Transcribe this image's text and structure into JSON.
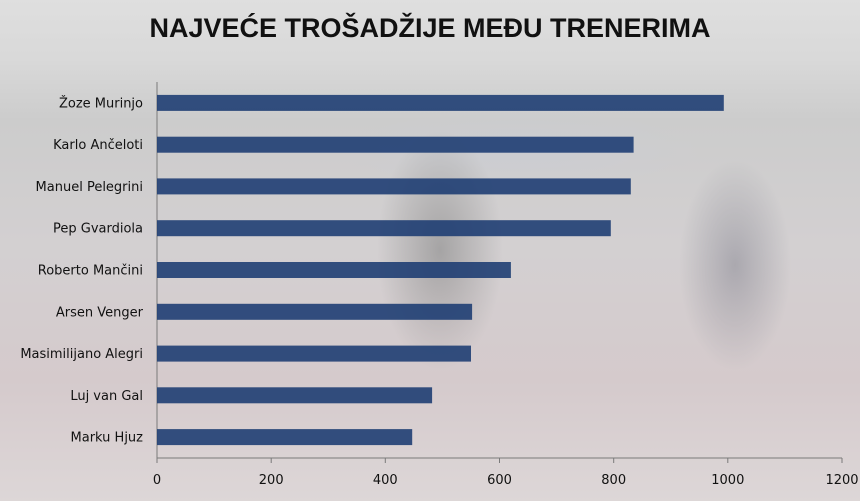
{
  "chart_data": {
    "type": "bar",
    "orientation": "horizontal",
    "title": "NAJVEĆE TROŠADŽIJE MEĐU TRENERIMA",
    "categories": [
      "Žoze Murinjo",
      "Karlo Ančeloti",
      "Manuel Pelegrini",
      "Pep Gvardiola",
      "Roberto Mančini",
      "Arsen Venger",
      "Masimilijano Alegri",
      "Luj van Gal",
      "Marku Hjuz"
    ],
    "values": [
      993,
      835,
      830,
      795,
      620,
      552,
      550,
      482,
      447
    ],
    "xlim": [
      0,
      1200
    ],
    "xticks": [
      "0",
      "200",
      "400",
      "600",
      "800",
      "1000",
      "1200"
    ],
    "grid": false,
    "bar_color": "#1f3e73"
  }
}
